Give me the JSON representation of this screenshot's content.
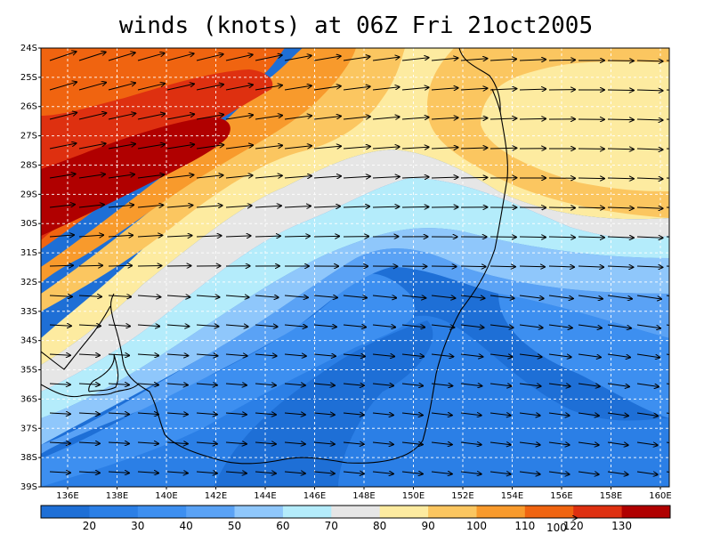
{
  "title": "winds (knots) at 06Z Fri 21oct2005",
  "map": {
    "lat_labels": [
      "24S",
      "25S",
      "26S",
      "27S",
      "28S",
      "29S",
      "30S",
      "31S",
      "32S",
      "33S",
      "34S",
      "35S",
      "36S",
      "37S",
      "38S",
      "39S"
    ],
    "lon_labels": [
      "136E",
      "138E",
      "140E",
      "142E",
      "144E",
      "146E",
      "148E",
      "150E",
      "152E",
      "154E",
      "156E",
      "158E",
      "160E"
    ]
  },
  "colorbar": {
    "labels": [
      "20",
      "30",
      "40",
      "50",
      "60",
      "70",
      "80",
      "90",
      "100",
      "110",
      "120",
      "130"
    ],
    "colors": [
      "#1e6fd6",
      "#2b7fe6",
      "#3d8ff0",
      "#5aa2f5",
      "#8fc7fb",
      "#b4ecfb",
      "#e6e6e6",
      "#fdeba0",
      "#fbc660",
      "#f89a2c",
      "#f06410",
      "#de3010",
      "#b00000"
    ],
    "reference_vector_label": "100"
  }
}
